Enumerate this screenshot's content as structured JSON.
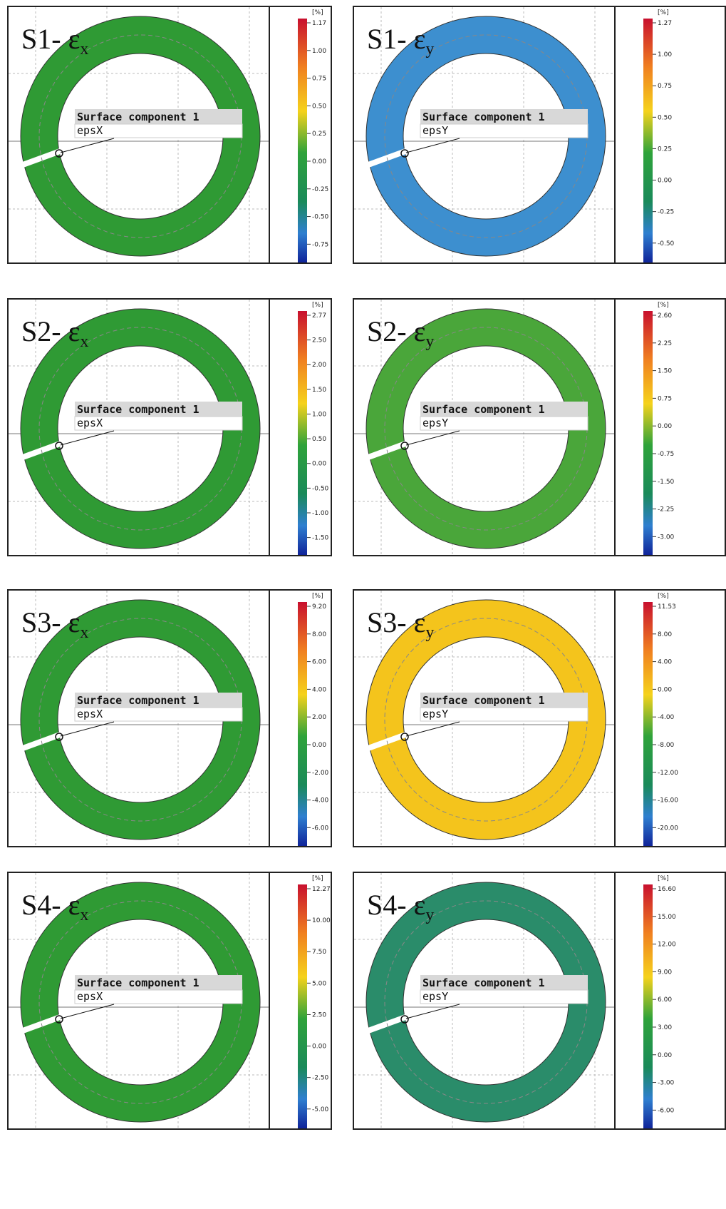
{
  "panels": [
    {
      "label": "S1- ε",
      "sub": "x",
      "unit": "[%]",
      "ticks": [
        "1.17",
        "1.00",
        "0.75",
        "0.50",
        "0.25",
        "0.00",
        "-0.25",
        "-0.50",
        "-0.75"
      ],
      "callout": "Surface component 1",
      "field": "epsX"
    },
    {
      "label": "S1- ε",
      "sub": "y",
      "unit": "[%]",
      "ticks": [
        "1.27",
        "1.00",
        "0.75",
        "0.50",
        "0.25",
        "0.00",
        "-0.25",
        "-0.50"
      ],
      "callout": "Surface component 1",
      "field": "epsY"
    },
    {
      "label": "S2- ε",
      "sub": "x",
      "unit": "[%]",
      "ticks": [
        "2.77",
        "2.50",
        "2.00",
        "1.50",
        "1.00",
        "0.50",
        "0.00",
        "-0.50",
        "-1.00",
        "-1.50"
      ],
      "callout": "Surface component 1",
      "field": "epsX"
    },
    {
      "label": "S2- ε",
      "sub": "y",
      "unit": "[%]",
      "ticks": [
        "2.60",
        "2.25",
        "1.50",
        "0.75",
        "0.00",
        "-0.75",
        "-1.50",
        "-2.25",
        "-3.00"
      ],
      "callout": "Surface component 1",
      "field": "epsY"
    },
    {
      "label": "S3- ε",
      "sub": "x",
      "unit": "[%]",
      "ticks": [
        "9.20",
        "8.00",
        "6.00",
        "4.00",
        "2.00",
        "0.00",
        "-2.00",
        "-4.00",
        "-6.00"
      ],
      "callout": "Surface component 1",
      "field": "epsX"
    },
    {
      "label": "S3- ε",
      "sub": "y",
      "unit": "[%]",
      "ticks": [
        "11.53",
        "8.00",
        "4.00",
        "0.00",
        "-4.00",
        "-8.00",
        "-12.00",
        "-16.00",
        "-20.00"
      ],
      "callout": "Surface component 1",
      "field": "epsY"
    },
    {
      "label": "S4- ε",
      "sub": "x",
      "unit": "[%]",
      "ticks": [
        "12.27",
        "10.00",
        "7.50",
        "5.00",
        "2.50",
        "0.00",
        "-2.50",
        "-5.00"
      ],
      "callout": "Surface component 1",
      "field": "epsX"
    },
    {
      "label": "S4- ε",
      "sub": "y",
      "unit": "[%]",
      "ticks": [
        "16.60",
        "15.00",
        "12.00",
        "9.00",
        "6.00",
        "3.00",
        "0.00",
        "-3.00",
        "-6.00"
      ],
      "callout": "Surface component 1",
      "field": "epsY"
    }
  ]
}
